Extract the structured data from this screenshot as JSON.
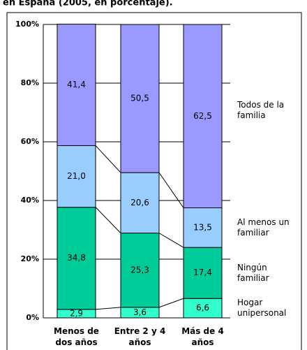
{
  "chart_data": {
    "type": "stacked_bar",
    "title": "en España (2005, en porcentaje).",
    "categories": [
      "Menos de dos años",
      "Entre 2 y 4 años",
      "Más de 4 años"
    ],
    "series": [
      {
        "name": "Hogar unipersonal",
        "color": "#33ffcc",
        "values": [
          2.9,
          3.6,
          6.6
        ],
        "value_labels": [
          "2,9",
          "3,6",
          "6,6"
        ]
      },
      {
        "name": "Ningún familiar",
        "color": "#00cc99",
        "values": [
          34.8,
          25.3,
          17.4
        ],
        "value_labels": [
          "34,8",
          "25,3",
          "17,4"
        ]
      },
      {
        "name": "Al menos un familiar",
        "color": "#99ccff",
        "values": [
          21.0,
          20.6,
          13.5
        ],
        "value_labels": [
          "21,0",
          "20,6",
          "13,5"
        ]
      },
      {
        "name": "Todos de la familia",
        "color": "#9999ff",
        "values": [
          41.4,
          50.5,
          62.5
        ],
        "value_labels": [
          "41,4",
          "50,5",
          "62,5"
        ]
      }
    ],
    "ylim": [
      0,
      100
    ],
    "yticks": [
      {
        "value": 0,
        "label": "0%"
      },
      {
        "value": 20,
        "label": "20%"
      },
      {
        "value": 40,
        "label": "40%"
      },
      {
        "value": 60,
        "label": "60%"
      },
      {
        "value": 80,
        "label": "80%"
      },
      {
        "value": 100,
        "label": "100%"
      }
    ],
    "grid": true
  }
}
